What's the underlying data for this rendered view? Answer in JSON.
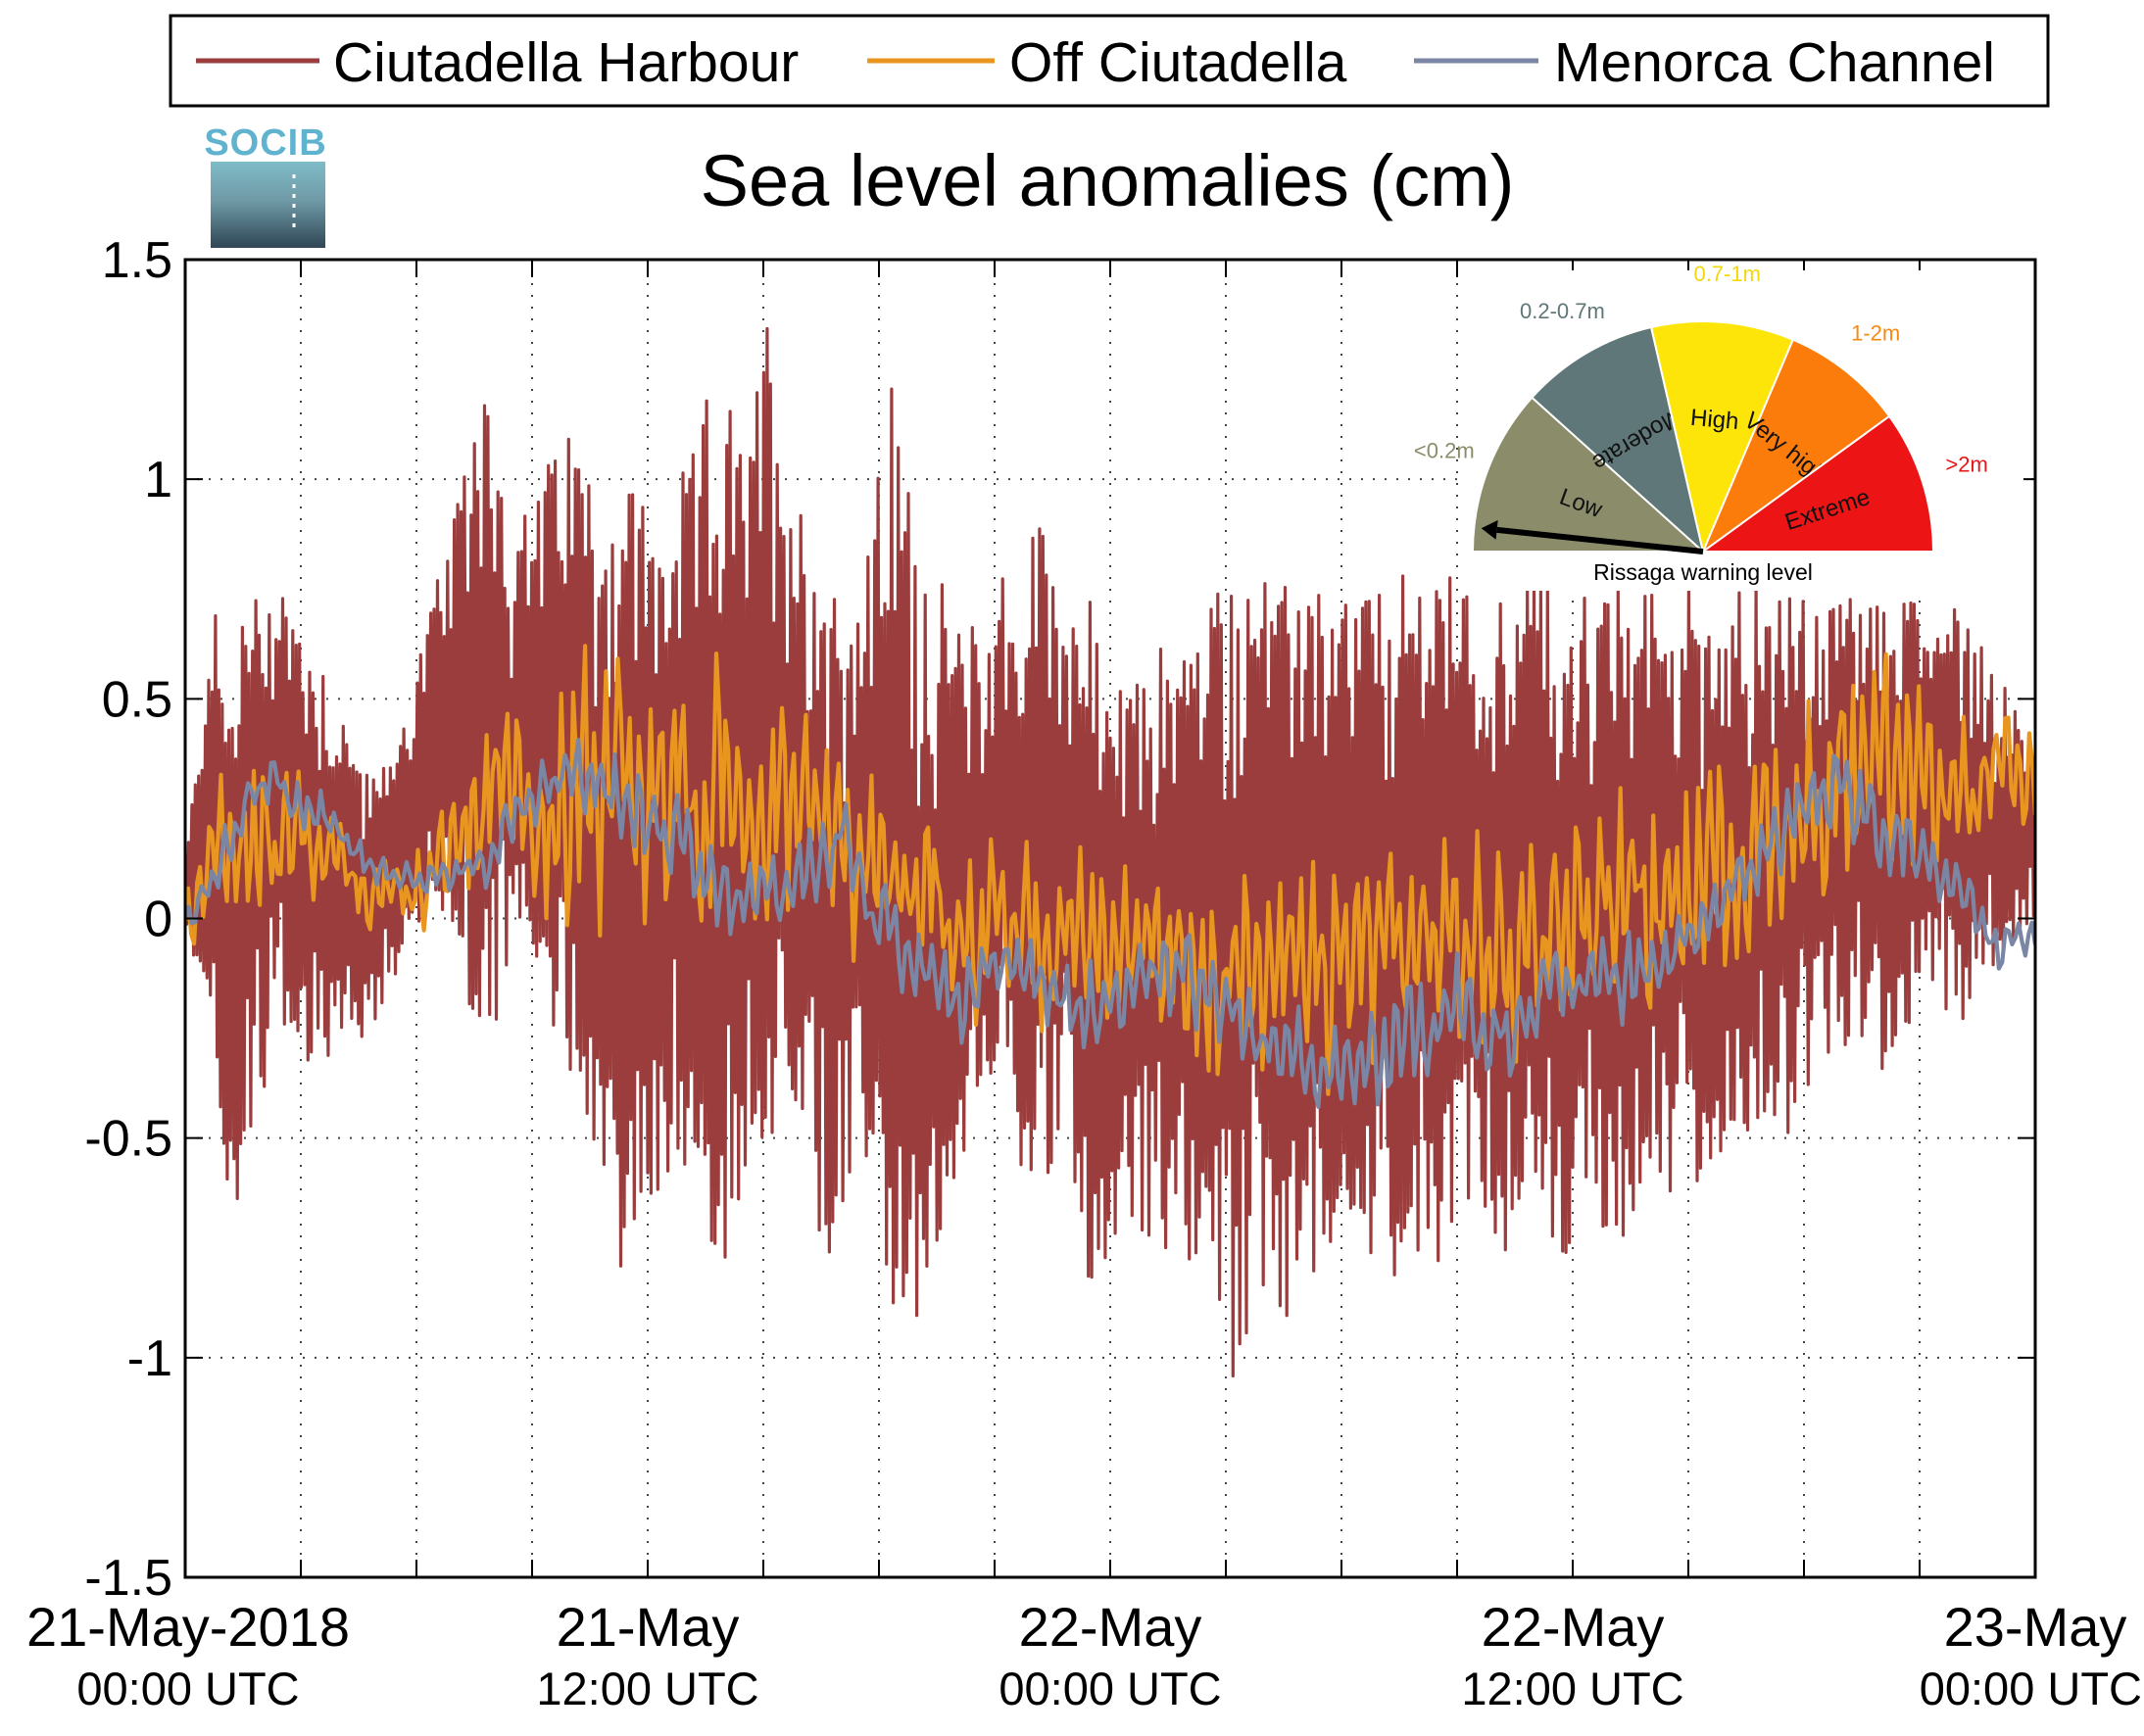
{
  "chart_data": {
    "type": "line",
    "title": "Sea level anomalies (cm)",
    "xlabel": "",
    "ylabel": "",
    "x_range_hours": [
      0,
      48
    ],
    "ylim": [
      -1.5,
      1.5
    ],
    "grid": true,
    "grid_style": "dotted",
    "legend_position": "top",
    "y_ticks": [
      {
        "value": 1.5,
        "label": "1.5"
      },
      {
        "value": 1,
        "label": "1"
      },
      {
        "value": 0.5,
        "label": "0.5"
      },
      {
        "value": 0,
        "label": "0"
      },
      {
        "value": -0.5,
        "label": "-0.5"
      },
      {
        "value": -1,
        "label": "-1"
      },
      {
        "value": -1.5,
        "label": "-1.5"
      }
    ],
    "x_minor_ticks_hours": [
      3,
      6,
      9,
      12,
      15,
      18,
      21,
      24,
      27,
      30,
      33,
      36,
      39,
      42,
      45
    ],
    "x_ticks": [
      {
        "hour": 0,
        "label": "21-May-2018",
        "sublabel": "00:00 UTC"
      },
      {
        "hour": 12,
        "label": "21-May",
        "sublabel": "12:00 UTC"
      },
      {
        "hour": 24,
        "label": "22-May",
        "sublabel": "00:00 UTC"
      },
      {
        "hour": 36,
        "label": "22-May",
        "sublabel": "12:00 UTC"
      },
      {
        "hour": 48,
        "label": "23-May",
        "sublabel": "00:00 UTC"
      }
    ],
    "series": [
      {
        "name": "Ciutadella Harbour",
        "color": "#9b3d3d",
        "x_hours": [
          0,
          0.7,
          1.1,
          1.4,
          2,
          2.3,
          3,
          4,
          5,
          5.6,
          6,
          7,
          7.8,
          8.5,
          9.2,
          10,
          10.8,
          11.5,
          12.2,
          13,
          13.8,
          14.5,
          15.1,
          15.6,
          16.2,
          16.8,
          17.5,
          18.3,
          19,
          19.8,
          20.7,
          21.3,
          21.6,
          22,
          22.8,
          23.5,
          24.3,
          25,
          25.8,
          26.5,
          27.3,
          27.8,
          28.3,
          29,
          29.8,
          30.5,
          31.3,
          32,
          32.8,
          33.5,
          34.2,
          35,
          35.8,
          36.5,
          37.2,
          38,
          38.8,
          39.5,
          40.2,
          41,
          41.8,
          42.5,
          43.3,
          44,
          44.8,
          45.5,
          46.3,
          47,
          47.7,
          48
        ],
        "upper": [
          0.1,
          0.75,
          0.5,
          0.72,
          0.75,
          0.82,
          0.7,
          0.5,
          0.3,
          0.45,
          0.6,
          0.9,
          1.33,
          0.85,
          1.0,
          1.15,
          0.95,
          1.05,
          0.9,
          1.0,
          1.27,
          1.05,
          1.38,
          1.1,
          0.9,
          0.8,
          0.7,
          1.23,
          0.9,
          0.7,
          0.65,
          0.85,
          0.6,
          0.95,
          0.8,
          0.7,
          0.5,
          0.6,
          0.65,
          0.7,
          0.85,
          0.86,
          0.7,
          0.85,
          0.7,
          0.8,
          0.7,
          0.85,
          0.8,
          0.75,
          0.75,
          0.8,
          0.7,
          0.75,
          0.75,
          0.75,
          0.75,
          0.75,
          0.75,
          0.75,
          0.75,
          0.7,
          0.75,
          0.75,
          0.75,
          0.75,
          0.7,
          0.55,
          0.45,
          0.4
        ],
        "lower": [
          -0.05,
          -0.2,
          -0.68,
          -0.72,
          -0.4,
          -0.3,
          -0.35,
          -0.3,
          -0.25,
          -0.1,
          -0.05,
          -0.05,
          -0.35,
          -0.1,
          -0.25,
          -0.35,
          -0.55,
          -0.92,
          -0.65,
          -0.55,
          -0.85,
          -0.6,
          -0.5,
          -0.5,
          -0.65,
          -0.82,
          -0.5,
          -0.88,
          -1.08,
          -0.6,
          -0.5,
          -0.3,
          -0.55,
          -0.65,
          -0.55,
          -0.85,
          -0.7,
          -0.75,
          -0.8,
          -0.75,
          -1.16,
          -0.8,
          -0.98,
          -0.85,
          -0.7,
          -0.75,
          -0.8,
          -0.85,
          -0.7,
          -0.65,
          -0.75,
          -0.7,
          -0.8,
          -0.7,
          -0.75,
          -0.7,
          -0.65,
          -0.6,
          -0.5,
          -0.55,
          -0.45,
          -0.4,
          -0.3,
          -0.35,
          -0.25,
          -0.3,
          -0.2,
          -0.1,
          -0.05,
          0.0
        ]
      },
      {
        "name": "Off Ciutadella",
        "color": "#e8961f",
        "x_hours": [
          0,
          1,
          2,
          3,
          4,
          5,
          6,
          7,
          8,
          9,
          10,
          11,
          12,
          13,
          14,
          15,
          16,
          17,
          18,
          19,
          20,
          21,
          22,
          23,
          24,
          25,
          26,
          27,
          28,
          29,
          30,
          31,
          32,
          33,
          34,
          35,
          36,
          37,
          38,
          39,
          40,
          41,
          42,
          43,
          44,
          45,
          46,
          47,
          48
        ],
        "center": [
          0.0,
          0.15,
          0.2,
          0.2,
          0.1,
          0.05,
          0.05,
          0.2,
          0.3,
          0.3,
          0.28,
          0.3,
          0.35,
          0.3,
          0.3,
          0.25,
          0.3,
          0.2,
          0.1,
          0.05,
          -0.05,
          0.0,
          0.0,
          -0.1,
          -0.05,
          -0.05,
          -0.1,
          -0.1,
          -0.15,
          -0.15,
          -0.1,
          -0.05,
          -0.05,
          -0.05,
          -0.1,
          -0.05,
          0.0,
          0.05,
          0.05,
          0.1,
          0.1,
          0.2,
          0.25,
          0.3,
          0.3,
          0.3,
          0.3,
          0.3,
          0.3
        ],
        "amp": [
          0.1,
          0.25,
          0.25,
          0.2,
          0.12,
          0.1,
          0.12,
          0.18,
          0.25,
          0.3,
          0.35,
          0.4,
          0.35,
          0.35,
          0.3,
          0.3,
          0.3,
          0.3,
          0.25,
          0.25,
          0.25,
          0.25,
          0.25,
          0.25,
          0.25,
          0.25,
          0.3,
          0.3,
          0.3,
          0.3,
          0.3,
          0.3,
          0.3,
          0.3,
          0.3,
          0.3,
          0.3,
          0.3,
          0.3,
          0.3,
          0.3,
          0.3,
          0.3,
          0.3,
          0.28,
          0.25,
          0.22,
          0.2,
          0.15
        ]
      },
      {
        "name": "Menorca Channel",
        "color": "#7a86a3",
        "x_hours": [
          0,
          1,
          2,
          3,
          4,
          5,
          6,
          7,
          8,
          9,
          10,
          11,
          12,
          13,
          14,
          15,
          16,
          17,
          18,
          19,
          20,
          21,
          22,
          23,
          24,
          25,
          26,
          27,
          28,
          29,
          30,
          31,
          32,
          33,
          34,
          35,
          36,
          37,
          38,
          39,
          40,
          41,
          42,
          43,
          44,
          45,
          46,
          47,
          48
        ],
        "center": [
          0.0,
          0.15,
          0.3,
          0.28,
          0.2,
          0.1,
          0.08,
          0.1,
          0.15,
          0.28,
          0.35,
          0.3,
          0.25,
          0.15,
          0.05,
          0.05,
          0.1,
          0.2,
          0.0,
          -0.1,
          -0.2,
          -0.1,
          -0.1,
          -0.2,
          -0.2,
          -0.1,
          -0.15,
          -0.2,
          -0.3,
          -0.3,
          -0.35,
          -0.3,
          -0.25,
          -0.2,
          -0.25,
          -0.2,
          -0.15,
          -0.15,
          -0.1,
          -0.05,
          0.05,
          0.15,
          0.25,
          0.3,
          0.2,
          0.15,
          0.05,
          -0.05,
          -0.05
        ],
        "amp": [
          0.05,
          0.1,
          0.08,
          0.08,
          0.06,
          0.05,
          0.05,
          0.06,
          0.08,
          0.1,
          0.1,
          0.12,
          0.12,
          0.12,
          0.12,
          0.12,
          0.12,
          0.12,
          0.12,
          0.12,
          0.12,
          0.12,
          0.12,
          0.12,
          0.12,
          0.12,
          0.12,
          0.12,
          0.15,
          0.15,
          0.15,
          0.15,
          0.15,
          0.15,
          0.15,
          0.15,
          0.12,
          0.12,
          0.12,
          0.12,
          0.12,
          0.12,
          0.15,
          0.15,
          0.12,
          0.1,
          0.08,
          0.08,
          0.06
        ]
      }
    ]
  },
  "logo": {
    "text": "SOCIB",
    "color": "#5fb3cf"
  },
  "gauge": {
    "title": "Rissaga warning level",
    "needle_angle_deg": 174,
    "segments": [
      {
        "name": "Low",
        "range": "<0.2m",
        "color": "#8b8c6a",
        "range_color": "#8b8c6a"
      },
      {
        "name": "Moderate",
        "range": "0.2-0.7m",
        "color": "#5f7778",
        "range_color": "#5f7778"
      },
      {
        "name": "High",
        "range": "0.7-1m",
        "color": "#fde50a",
        "range_color": "#f2d80a"
      },
      {
        "name": "Very high",
        "range": "1-2m",
        "color": "#fb7c0a",
        "range_color": "#f58a13"
      },
      {
        "name": "Extreme",
        "range": ">2m",
        "color": "#ec1414",
        "range_color": "#e61717"
      }
    ]
  }
}
